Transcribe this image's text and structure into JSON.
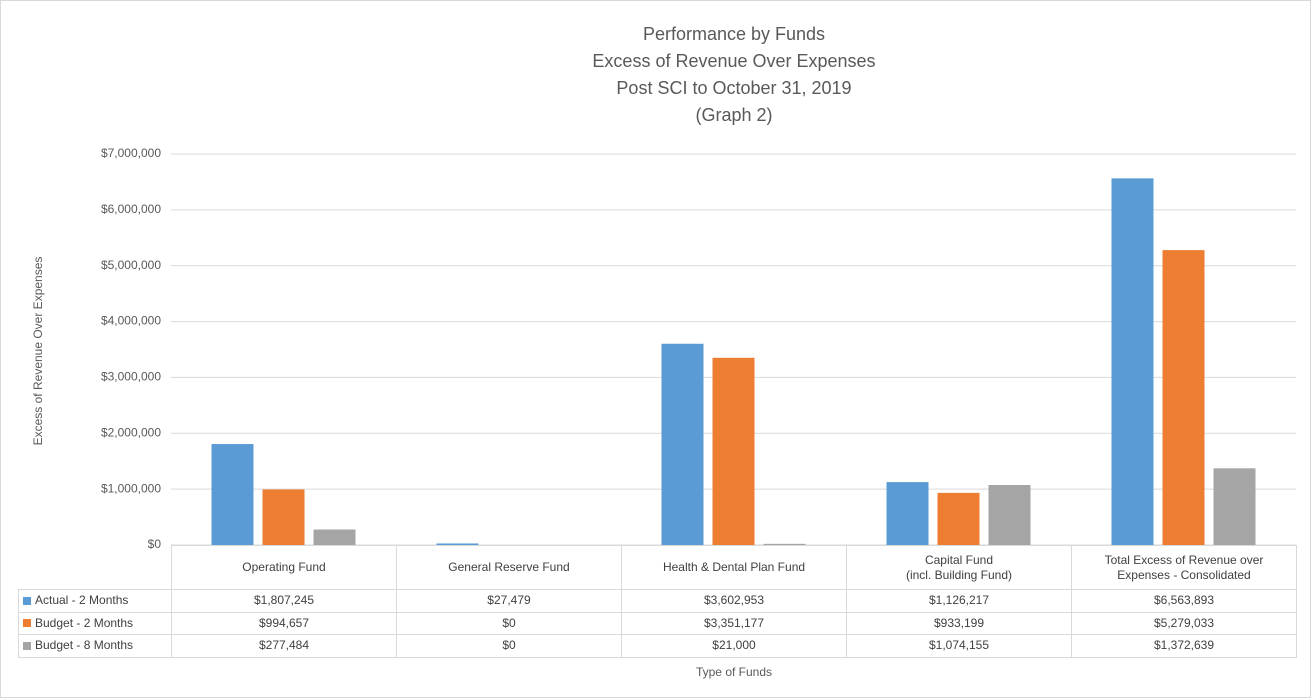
{
  "chart_data": {
    "type": "bar",
    "title": [
      "Performance by Funds",
      "Excess of Revenue Over Expenses",
      "Post SCI to October 31, 2019",
      "(Graph 2)"
    ],
    "y_axis_label": "Excess of Revenue Over Expenses",
    "x_axis_label": "Type of Funds",
    "categories": [
      "Operating Fund",
      "General Reserve Fund",
      "Health & Dental Plan Fund",
      "Capital Fund\n(incl. Building Fund)",
      "Total Excess of Revenue over\nExpenses - Consolidated"
    ],
    "series": [
      {
        "name": "Actual - 2 Months",
        "color": "#5b9bd5",
        "values": [
          1807245,
          27479,
          3602953,
          1126217,
          6563893
        ],
        "value_labels": [
          "$1,807,245",
          "$27,479",
          "$3,602,953",
          "$1,126,217",
          "$6,563,893"
        ]
      },
      {
        "name": "Budget - 2 Months",
        "color": "#ed7d31",
        "values": [
          994657,
          0,
          3351177,
          933199,
          5279033
        ],
        "value_labels": [
          "$994,657",
          "$0",
          "$3,351,177",
          "$933,199",
          "$5,279,033"
        ]
      },
      {
        "name": "Budget - 8 Months",
        "color": "#a5a5a5",
        "values": [
          277484,
          0,
          21000,
          1074155,
          1372639
        ],
        "value_labels": [
          "$277,484",
          "$0",
          "$21,000",
          "$1,074,155",
          "$1,372,639"
        ]
      }
    ],
    "ylim": [
      0,
      7000000
    ],
    "yticks": [
      {
        "value": 0,
        "label": "$0"
      },
      {
        "value": 1000000,
        "label": "$1,000,000"
      },
      {
        "value": 2000000,
        "label": "$2,000,000"
      },
      {
        "value": 3000000,
        "label": "$3,000,000"
      },
      {
        "value": 4000000,
        "label": "$4,000,000"
      },
      {
        "value": 5000000,
        "label": "$5,000,000"
      },
      {
        "value": 6000000,
        "label": "$6,000,000"
      },
      {
        "value": 7000000,
        "label": "$7,000,000"
      }
    ],
    "grid": true
  }
}
